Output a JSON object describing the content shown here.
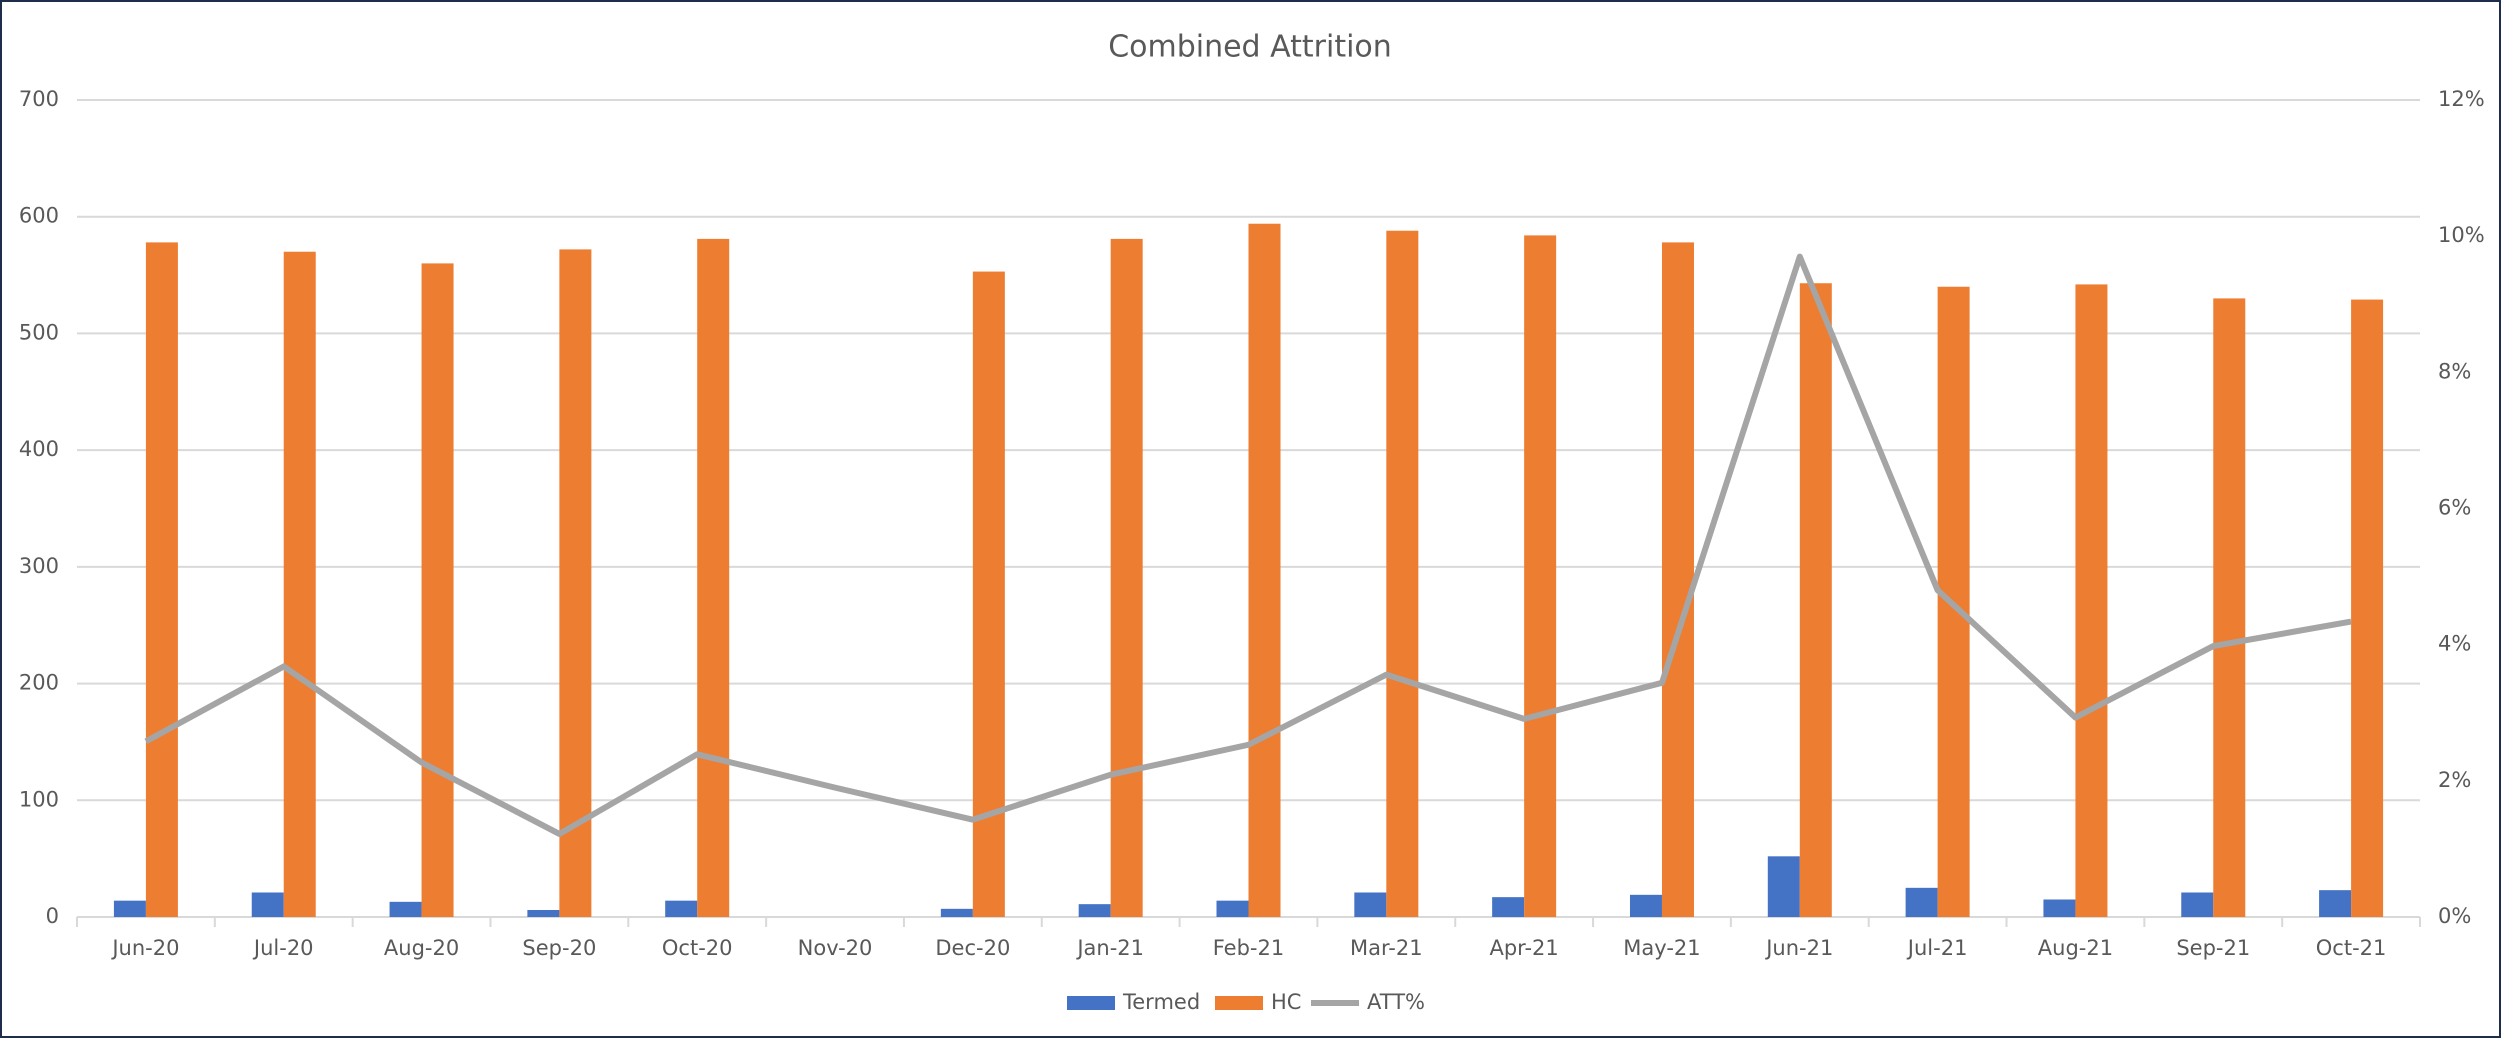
{
  "chart_data": {
    "type": "bar-line",
    "title": "Combined Attrition",
    "categories": [
      "Jun-20",
      "Jul-20",
      "Aug-20",
      "Sep-20",
      "Oct-20",
      "Nov-20",
      "Dec-20",
      "Jan-21",
      "Feb-21",
      "Mar-21",
      "Apr-21",
      "May-21",
      "Jun-21",
      "Jul-21",
      "Aug-21",
      "Sep-21",
      "Oct-21"
    ],
    "series": [
      {
        "name": "Termed",
        "type": "bar",
        "color": "#4472c4",
        "values": [
          14,
          21,
          13,
          6,
          14,
          null,
          7,
          11,
          14,
          21,
          17,
          19,
          52,
          25,
          15,
          21,
          23
        ]
      },
      {
        "name": "HC",
        "type": "bar",
        "color": "#ed7d31",
        "values": [
          578,
          570,
          560,
          572,
          581,
          null,
          553,
          581,
          594,
          588,
          584,
          578,
          543,
          540,
          542,
          530,
          529
        ]
      },
      {
        "name": "ATT%",
        "type": "line",
        "axis": "y2",
        "color": "#a5a5a5",
        "values": [
          2.58,
          3.68,
          2.27,
          1.22,
          2.39,
          1.9,
          1.43,
          2.09,
          2.53,
          3.56,
          2.91,
          3.44,
          9.7,
          4.8,
          2.93,
          3.98,
          4.34
        ]
      }
    ],
    "ylim": [
      0,
      700
    ],
    "yticks": [
      0,
      100,
      200,
      300,
      400,
      500,
      600,
      700
    ],
    "y2lim": [
      0,
      12
    ],
    "y2ticks": [
      {
        "value": 0,
        "label": "0%"
      },
      {
        "value": 2,
        "label": "2%"
      },
      {
        "value": 4,
        "label": "4%"
      },
      {
        "value": 6,
        "label": "6%"
      },
      {
        "value": 8,
        "label": "8%"
      },
      {
        "value": 10,
        "label": "10%"
      },
      {
        "value": 12,
        "label": "12%"
      }
    ],
    "grid": true,
    "legend": "bottom"
  }
}
